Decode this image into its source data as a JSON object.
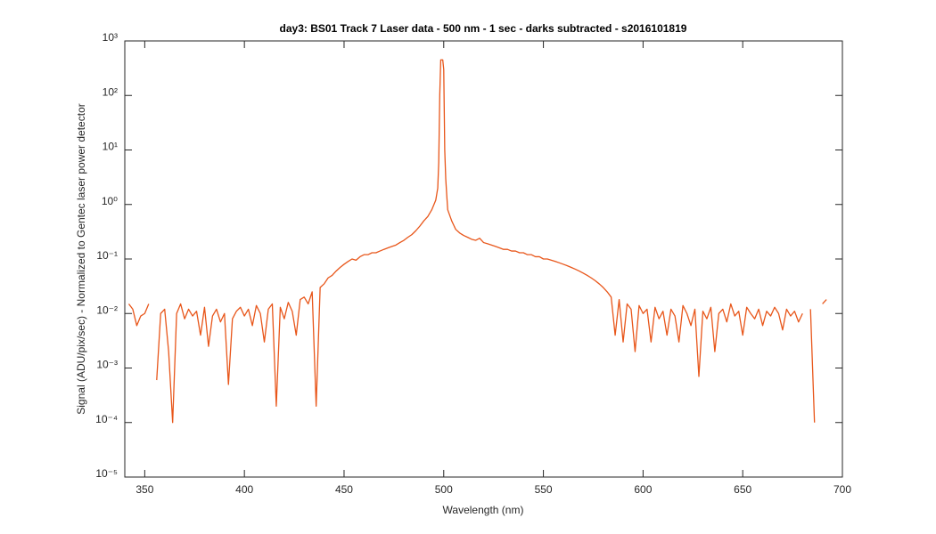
{
  "chart_data": {
    "type": "line",
    "title": "day3: BS01  Track 7 Laser data - 500 nm - 1 sec - darks subtracted - s2016101819",
    "xlabel": "Wavelength (nm)",
    "ylabel": "Signal (ADU/pix/sec) - Normalized to Gentec laser power detector",
    "color": "#e8561a",
    "log_y": true,
    "xlim": [
      340,
      700
    ],
    "xticks": [
      350,
      400,
      450,
      500,
      550,
      600,
      650,
      700
    ],
    "ylim": [
      1e-05,
      1000
    ],
    "yticks": [
      {
        "value": 1e-05,
        "label": "10⁻⁵"
      },
      {
        "value": 0.0001,
        "label": "10⁻⁴"
      },
      {
        "value": 0.001,
        "label": "10⁻³"
      },
      {
        "value": 0.01,
        "label": "10⁻²"
      },
      {
        "value": 0.1,
        "label": "10⁻¹"
      },
      {
        "value": 1,
        "label": "10⁰"
      },
      {
        "value": 10,
        "label": "10¹"
      },
      {
        "value": 100,
        "label": "10²"
      },
      {
        "value": 1000,
        "label": "10³"
      }
    ],
    "x": [
      342,
      344,
      346,
      348,
      350,
      352,
      354,
      356,
      358,
      360,
      362,
      364,
      366,
      368,
      370,
      372,
      374,
      376,
      378,
      380,
      382,
      384,
      386,
      388,
      390,
      392,
      394,
      396,
      398,
      400,
      402,
      404,
      406,
      408,
      410,
      412,
      414,
      416,
      418,
      420,
      422,
      424,
      426,
      428,
      430,
      432,
      434,
      436,
      438,
      440,
      442,
      444,
      446,
      448,
      450,
      452,
      454,
      456,
      458,
      460,
      462,
      464,
      466,
      468,
      470,
      472,
      474,
      476,
      478,
      480,
      482,
      484,
      486,
      488,
      490,
      492,
      494,
      496,
      497,
      497.5,
      498,
      498.5,
      499,
      499.5,
      500,
      500.5,
      501,
      501.5,
      502,
      504,
      506,
      508,
      510,
      512,
      514,
      516,
      518,
      520,
      522,
      524,
      526,
      528,
      530,
      532,
      534,
      536,
      538,
      540,
      542,
      544,
      546,
      548,
      550,
      552,
      554,
      556,
      558,
      560,
      562,
      564,
      566,
      568,
      570,
      572,
      574,
      576,
      578,
      580,
      582,
      584,
      586,
      588,
      590,
      592,
      594,
      596,
      598,
      600,
      602,
      604,
      606,
      608,
      610,
      612,
      614,
      616,
      618,
      620,
      622,
      624,
      626,
      628,
      630,
      632,
      634,
      636,
      638,
      640,
      642,
      644,
      646,
      648,
      650,
      652,
      654,
      656,
      658,
      660,
      662,
      664,
      666,
      668,
      670,
      672,
      674,
      676,
      678,
      680,
      682,
      684,
      686,
      688,
      690,
      692
    ],
    "values": [
      0.015,
      0.012,
      0.006,
      0.009,
      0.01,
      0.015,
      null,
      0.0006,
      0.01,
      0.012,
      0.002,
      0.0001,
      0.01,
      0.015,
      0.008,
      0.012,
      0.009,
      0.011,
      0.004,
      0.013,
      0.0025,
      0.009,
      0.012,
      0.007,
      0.01,
      0.0005,
      0.008,
      0.011,
      0.013,
      0.009,
      0.012,
      0.006,
      0.014,
      0.01,
      0.003,
      0.012,
      0.015,
      0.0002,
      0.013,
      0.008,
      0.016,
      0.011,
      0.004,
      0.018,
      0.02,
      0.015,
      0.025,
      0.0002,
      0.03,
      0.035,
      0.045,
      0.05,
      0.06,
      0.07,
      0.08,
      0.09,
      0.1,
      0.095,
      0.11,
      0.12,
      0.12,
      0.13,
      0.13,
      0.14,
      0.15,
      0.16,
      0.17,
      0.18,
      0.2,
      0.22,
      0.25,
      0.28,
      0.33,
      0.4,
      0.5,
      0.6,
      0.8,
      1.2,
      2,
      6,
      100,
      450,
      450,
      450,
      300,
      10,
      3,
      1.5,
      0.8,
      0.5,
      0.35,
      0.3,
      0.27,
      0.25,
      0.23,
      0.22,
      0.24,
      0.2,
      0.19,
      0.18,
      0.17,
      0.16,
      0.15,
      0.15,
      0.14,
      0.14,
      0.13,
      0.13,
      0.12,
      0.12,
      0.11,
      0.11,
      0.1,
      0.1,
      0.095,
      0.09,
      0.085,
      0.08,
      0.075,
      0.07,
      0.065,
      0.06,
      0.055,
      0.05,
      0.045,
      0.04,
      0.035,
      0.03,
      0.025,
      0.02,
      0.004,
      0.018,
      0.003,
      0.015,
      0.012,
      0.002,
      0.014,
      0.01,
      0.012,
      0.003,
      0.013,
      0.008,
      0.011,
      0.004,
      0.012,
      0.009,
      0.003,
      0.014,
      0.01,
      0.006,
      0.012,
      0.0007,
      0.011,
      0.008,
      0.013,
      0.002,
      0.01,
      0.012,
      0.007,
      0.015,
      0.009,
      0.011,
      0.004,
      0.013,
      0.01,
      0.008,
      0.012,
      0.006,
      0.011,
      0.009,
      0.013,
      0.01,
      0.005,
      0.012,
      0.009,
      0.011,
      0.007,
      0.01,
      null,
      0.012,
      0.0001,
      null,
      0.015,
      0.018
    ]
  }
}
